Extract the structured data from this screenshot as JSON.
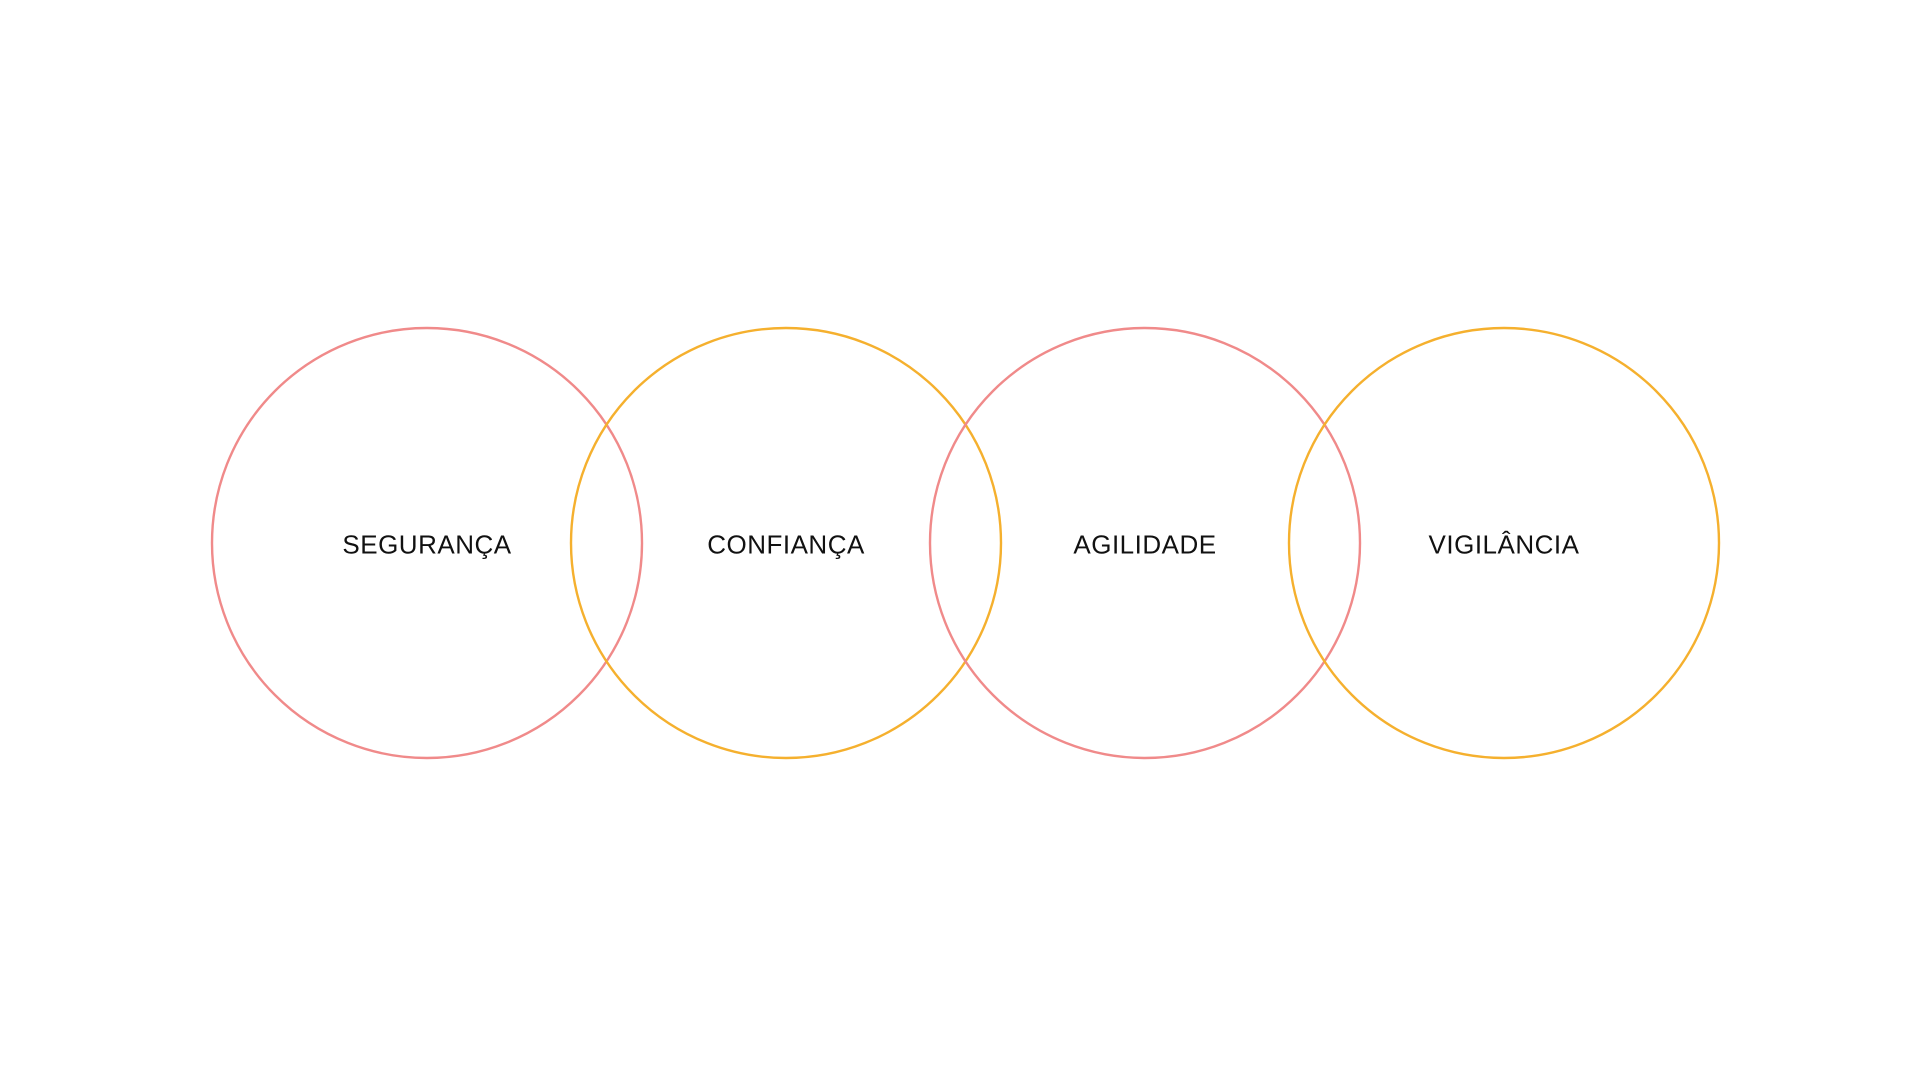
{
  "diagram": {
    "circles": [
      {
        "label": "SEGURANÇA",
        "stroke": "#f08a8a"
      },
      {
        "label": "CONFIANÇA",
        "stroke": "#f5b02e"
      },
      {
        "label": "AGILIDADE",
        "stroke": "#f08a8a"
      },
      {
        "label": "VIGILÂNCIA",
        "stroke": "#f5b02e"
      }
    ]
  }
}
